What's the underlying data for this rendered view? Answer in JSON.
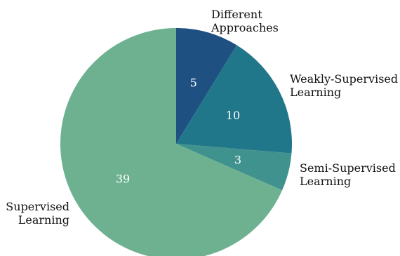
{
  "chart_data": {
    "type": "pie",
    "title": "",
    "slices": [
      {
        "label": "Different Approaches",
        "label_lines": [
          "Different",
          "Approaches"
        ],
        "value": 5,
        "value_label": "5",
        "color": "#1f5082"
      },
      {
        "label": "Weakly-Supervised Learning",
        "label_lines": [
          "Weakly-Supervised",
          "Learning"
        ],
        "value": 10,
        "value_label": "10",
        "color": "#21778a"
      },
      {
        "label": "Semi-Supervised Learning",
        "label_lines": [
          "Semi-Supervised",
          "Learning"
        ],
        "value": 3,
        "value_label": "3",
        "color": "#3f928e"
      },
      {
        "label": "Supervised Learning",
        "label_lines": [
          "Supervised",
          "Learning"
        ],
        "value": 39,
        "value_label": "39",
        "color": "#6db191"
      }
    ],
    "start_angle": "12 o'clock",
    "direction": "clockwise",
    "legend": "none"
  }
}
